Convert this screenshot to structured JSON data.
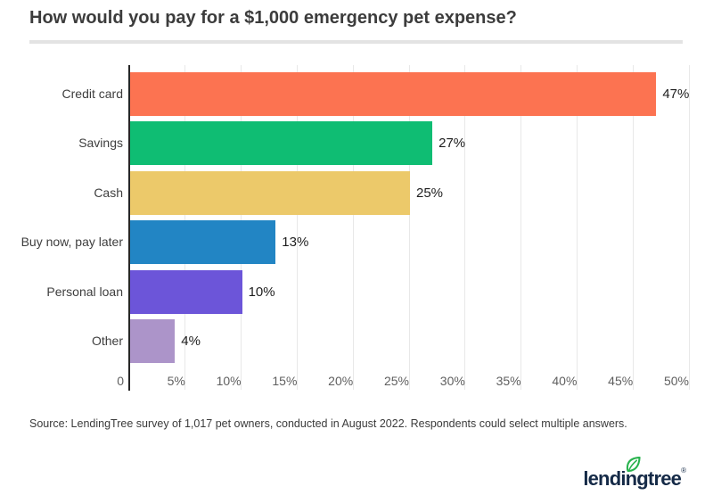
{
  "title": "How would you pay for a $1,000 emergency pet expense?",
  "source": "Source: LendingTree survey of 1,017 pet owners, conducted in August 2022. Respondents could select multiple answers.",
  "logo": {
    "text": "lendingtree",
    "registered": "®",
    "text_color": "#152a47",
    "leaf_color": "#29b34e"
  },
  "colors": {
    "axis": "#262626",
    "gridline": "#e8e8e8",
    "title_text": "#3c3c3c",
    "tick_text": "#5f5f5f",
    "category_text": "#3e3e3e",
    "value_text": "#1d1d1d"
  },
  "chart_data": {
    "type": "bar",
    "orientation": "horizontal",
    "title": "How would you pay for a $1,000 emergency pet expense?",
    "categories": [
      "Credit card",
      "Savings",
      "Cash",
      "Buy now, pay later",
      "Personal loan",
      "Other"
    ],
    "values": [
      47,
      27,
      25,
      13,
      10,
      4
    ],
    "value_labels": [
      "47%",
      "27%",
      "25%",
      "13%",
      "10%",
      "4%"
    ],
    "bar_colors": [
      "#FC7351",
      "#0FBD73",
      "#ECC96A",
      "#2285C4",
      "#6C55D9",
      "#AC94C9"
    ],
    "xlabel": "",
    "ylabel": "",
    "xlim": [
      0,
      50
    ],
    "x_ticks": [
      "0",
      "5%",
      "10%",
      "15%",
      "20%",
      "25%",
      "30%",
      "35%",
      "40%",
      "45%",
      "50%"
    ],
    "x_tick_step_pct": 5,
    "grid": true,
    "legend": false
  }
}
